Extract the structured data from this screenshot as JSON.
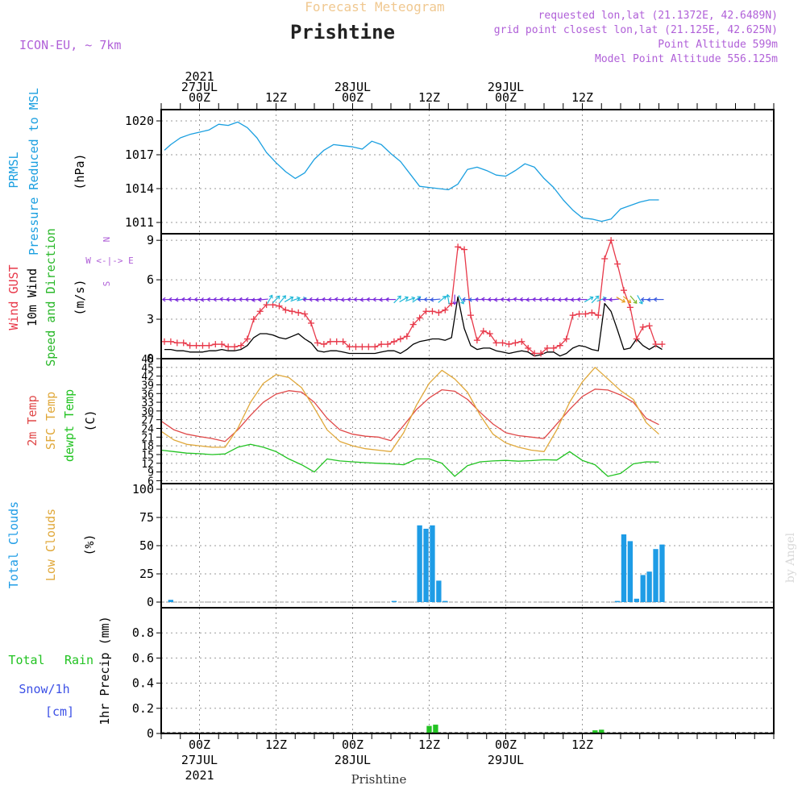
{
  "header": {
    "subtitle": "Forecast Meteogram",
    "location": "Prishtine",
    "model": "ICON-EU, ~ 7km",
    "requested": "requested lon,lat (21.1372E, 42.6489N)",
    "grid_point": "grid point closest lon,lat (21.125E, 42.625N)",
    "point_altitude": "Point Altitude 599m",
    "model_altitude": "Model Point Altitude 556.125m",
    "credit": "by Angel",
    "footer_location": "Prishtine"
  },
  "colors": {
    "pressure": "#1a9fe0",
    "gust": "#e8394a",
    "wind": "#000000",
    "direction": "#2ab82a",
    "temp2m": "#e04848",
    "sfc_temp": "#e0a83a",
    "dewpt": "#22c322",
    "clouds": "#1e9ce6",
    "low_clouds": "#e0a83a",
    "rain": "#22c322",
    "snow": "#3c50e6",
    "label_purple": "#b060d8",
    "subtitle_orange": "#f0c890"
  },
  "time_axis": {
    "hours_min": -6,
    "hours_max": 90,
    "ticks": [
      {
        "h": 0,
        "top": [
          "2021",
          "27JUL",
          "00Z"
        ],
        "bottom": [
          "00Z",
          "27JUL",
          "2021"
        ]
      },
      {
        "h": 12,
        "top": [
          "12Z"
        ],
        "bottom": [
          "12Z"
        ]
      },
      {
        "h": 24,
        "top": [
          "28JUL",
          "00Z"
        ],
        "bottom": [
          "00Z",
          "28JUL"
        ]
      },
      {
        "h": 36,
        "top": [
          "12Z"
        ],
        "bottom": [
          "12Z"
        ]
      },
      {
        "h": 48,
        "top": [
          "29JUL",
          "00Z"
        ],
        "bottom": [
          "00Z",
          "29JUL"
        ]
      },
      {
        "h": 60,
        "top": [
          "12Z"
        ],
        "bottom": [
          "12Z"
        ]
      }
    ]
  },
  "chart_data": [
    {
      "type": "line",
      "panel": "pressure",
      "labels": [
        "PRMSL",
        "Pressure Reduced to MSL",
        "(hPa)"
      ],
      "ylim": [
        1010,
        1021
      ],
      "yticks": [
        1011,
        1014,
        1017,
        1020
      ],
      "x": [
        -5.5,
        -4.5,
        -3,
        -1.5,
        0,
        1.5,
        3,
        4.5,
        6,
        7.5,
        9,
        10.5,
        12,
        13.5,
        15,
        16.5,
        18,
        19.5,
        21,
        22.5,
        24,
        25.5,
        27,
        28.5,
        30,
        31.5,
        33,
        34.5,
        36,
        37.5,
        39,
        40.5,
        42,
        43.5,
        45,
        46.5,
        48,
        49.5,
        51,
        52.5,
        54,
        55.5,
        57,
        58.5,
        60,
        61.5,
        63,
        64.5,
        66,
        67.5,
        69,
        70.5,
        72
      ],
      "values": [
        1017.4,
        1017.9,
        1018.5,
        1018.8,
        1019.0,
        1019.2,
        1019.7,
        1019.6,
        1019.9,
        1019.4,
        1018.5,
        1017.2,
        1016.3,
        1015.5,
        1014.9,
        1015.4,
        1016.6,
        1017.4,
        1017.9,
        1017.8,
        1017.7,
        1017.5,
        1018.2,
        1017.9,
        1017.1,
        1016.4,
        1015.3,
        1014.2,
        1014.1,
        1014.0,
        1013.9,
        1014.4,
        1015.7,
        1015.9,
        1015.6,
        1015.2,
        1015.1,
        1015.6,
        1016.2,
        1015.9,
        1014.9,
        1014.1,
        1013.0,
        1012.1,
        1011.4,
        1011.3,
        1011.1,
        1011.3,
        1012.2,
        1012.5,
        1012.8,
        1013.0,
        1013.0
      ]
    },
    {
      "type": "line",
      "panel": "wind",
      "labels": [
        "Wind GUST",
        "10m Wind",
        "Speed and Direction",
        "(m/s)"
      ],
      "compass": [
        "N",
        "W <-|-> E",
        "S"
      ],
      "ylim": [
        0,
        9.5
      ],
      "yticks": [
        0,
        3,
        6,
        9
      ],
      "x": [
        -5.5,
        -4.5,
        -3.5,
        -2.5,
        -1.5,
        -0.5,
        0.5,
        1.5,
        2.5,
        3.5,
        4.5,
        5.5,
        6.5,
        7.5,
        8.5,
        9.5,
        10.5,
        11.5,
        12.5,
        13.5,
        14.5,
        15.5,
        16.5,
        17.5,
        18.5,
        19.5,
        20.5,
        21.5,
        22.5,
        23.5,
        24.5,
        25.5,
        26.5,
        27.5,
        28.5,
        29.5,
        30.5,
        31.5,
        32.5,
        33.5,
        34.5,
        35.5,
        36.5,
        37.5,
        38.5,
        39.5,
        40.5,
        41.5,
        42.5,
        43.5,
        44.5,
        45.5,
        46.5,
        47.5,
        48.5,
        49.5,
        50.5,
        51.5,
        52.5,
        53.5,
        54.5,
        55.5,
        56.5,
        57.5,
        58.5,
        59.5,
        60.5,
        61.5,
        62.5,
        63.5,
        64.5,
        65.5,
        66.5,
        67.5,
        68.5,
        69.5,
        70.5,
        71.5,
        72.5
      ],
      "series": [
        {
          "name": "Wind GUST",
          "values": [
            1.3,
            1.3,
            1.2,
            1.2,
            1.0,
            1.0,
            1.0,
            1.0,
            1.1,
            1.1,
            0.9,
            0.9,
            1.0,
            1.5,
            3.0,
            3.6,
            4.1,
            4.1,
            4.0,
            3.7,
            3.6,
            3.5,
            3.4,
            2.7,
            1.2,
            1.1,
            1.3,
            1.3,
            1.3,
            0.9,
            0.9,
            0.9,
            0.9,
            0.9,
            1.1,
            1.1,
            1.3,
            1.5,
            1.7,
            2.6,
            3.1,
            3.6,
            3.6,
            3.5,
            3.7,
            4.2,
            8.5,
            8.3,
            3.3,
            1.4,
            2.1,
            1.9,
            1.2,
            1.2,
            1.1,
            1.2,
            1.3,
            0.8,
            0.4,
            0.4,
            0.8,
            0.8,
            1.0,
            1.5,
            3.3,
            3.4,
            3.4,
            3.5,
            3.3,
            7.6,
            9.0,
            7.2,
            5.2,
            3.9,
            1.5,
            2.4,
            2.5,
            1.1,
            1.1
          ]
        },
        {
          "name": "10m Wind",
          "values": [
            0.7,
            0.7,
            0.6,
            0.6,
            0.5,
            0.5,
            0.5,
            0.6,
            0.6,
            0.7,
            0.6,
            0.6,
            0.7,
            1.0,
            1.6,
            1.9,
            1.9,
            1.8,
            1.6,
            1.5,
            1.7,
            1.9,
            1.5,
            1.2,
            0.6,
            0.5,
            0.6,
            0.6,
            0.5,
            0.4,
            0.4,
            0.4,
            0.4,
            0.4,
            0.5,
            0.6,
            0.6,
            0.4,
            0.7,
            1.1,
            1.3,
            1.4,
            1.5,
            1.5,
            1.4,
            1.6,
            4.7,
            2.3,
            1.0,
            0.7,
            0.8,
            0.8,
            0.6,
            0.5,
            0.4,
            0.5,
            0.6,
            0.5,
            0.2,
            0.3,
            0.5,
            0.5,
            0.2,
            0.4,
            0.8,
            1.0,
            0.9,
            0.7,
            0.6,
            4.2,
            3.6,
            2.2,
            0.7,
            0.8,
            1.5,
            1.0,
            0.7,
            1.0,
            0.7
          ]
        }
      ]
    },
    {
      "type": "line",
      "panel": "temperature",
      "labels": [
        "2m Temp",
        "SFC Temp",
        "dewpt Temp",
        "(C)"
      ],
      "ylim": [
        5,
        48
      ],
      "yticks": [
        6,
        9,
        12,
        15,
        18,
        21,
        24,
        27,
        30,
        33,
        36,
        39,
        42,
        45,
        48
      ],
      "x": [
        -6,
        -4,
        -2,
        0,
        2,
        4,
        6,
        8,
        10,
        12,
        14,
        16,
        18,
        20,
        22,
        24,
        26,
        28,
        30,
        32,
        34,
        36,
        38,
        40,
        42,
        44,
        46,
        48,
        50,
        52,
        54,
        56,
        58,
        60,
        62,
        64,
        66,
        68,
        70,
        72
      ],
      "series": [
        {
          "name": "2m Temp",
          "values": [
            26.5,
            23.5,
            22.0,
            21.2,
            20.5,
            19.5,
            23.5,
            28.5,
            33.0,
            35.8,
            37.0,
            36.5,
            33.0,
            27.5,
            23.5,
            22.0,
            21.3,
            21.0,
            19.8,
            25.0,
            30.5,
            34.5,
            37.3,
            36.8,
            34.0,
            29.5,
            25.5,
            22.5,
            21.5,
            21.0,
            20.5,
            25.5,
            30.5,
            35.0,
            37.5,
            37.2,
            35.5,
            33.0,
            27.5,
            25.3
          ]
        },
        {
          "name": "SFC Temp",
          "values": [
            23.0,
            20.0,
            18.5,
            18.0,
            17.5,
            17.5,
            24.0,
            33.0,
            39.5,
            42.5,
            41.5,
            38.0,
            31.0,
            23.5,
            19.5,
            18.0,
            17.0,
            16.5,
            16.0,
            22.5,
            32.0,
            39.5,
            44.0,
            41.0,
            36.5,
            28.5,
            22.0,
            19.0,
            17.5,
            16.5,
            16.0,
            23.5,
            33.0,
            40.0,
            45.0,
            41.0,
            37.0,
            34.0,
            26.0,
            22.0
          ]
        },
        {
          "name": "dewpt Temp",
          "values": [
            16.5,
            16.0,
            15.5,
            15.3,
            15.0,
            15.2,
            17.5,
            18.5,
            17.5,
            16.0,
            13.5,
            11.5,
            9.0,
            13.5,
            12.8,
            12.5,
            12.2,
            12.0,
            11.8,
            11.5,
            13.5,
            13.5,
            12.0,
            7.5,
            11.2,
            12.5,
            12.8,
            13.0,
            12.7,
            12.9,
            13.2,
            13.1,
            16.0,
            13.0,
            11.5,
            7.5,
            8.5,
            11.8,
            12.5,
            12.4
          ]
        }
      ]
    },
    {
      "type": "bar",
      "panel": "clouds",
      "labels": [
        "Total Clouds",
        "Low Clouds",
        "(%)"
      ],
      "ylim": [
        -5,
        105
      ],
      "yticks": [
        0,
        25,
        50,
        75,
        100
      ],
      "x": [
        -4.5,
        30.5,
        34.5,
        35.5,
        36.5,
        37.5,
        38.5,
        65.5,
        66.5,
        67.5,
        68.5,
        69.5,
        70.5,
        71.5,
        72.5
      ],
      "values": [
        2,
        1,
        68,
        65,
        68,
        19,
        1,
        1,
        60,
        54,
        3,
        24,
        27,
        47,
        51
      ]
    },
    {
      "type": "bar",
      "panel": "precipitation",
      "labels": [
        "Total",
        "Rain",
        "Snow/1h",
        "[cm]",
        "1hr Precip (mm)"
      ],
      "ylim": [
        0,
        1.0
      ],
      "yticks": [
        0,
        0.2,
        0.4,
        0.6,
        0.8
      ],
      "x": [
        36,
        37,
        62,
        63
      ],
      "values": [
        0.06,
        0.07,
        0.025,
        0.03
      ]
    }
  ],
  "wind_arrows": {
    "comment": "wind direction arrows drawn along the gust line; angle in degrees (0 = toward east, 90 = toward south)",
    "x": [
      -5,
      -4,
      -3,
      -2,
      -1,
      0,
      1,
      2,
      3,
      4,
      5,
      6,
      7,
      8,
      9,
      10,
      11,
      12,
      13,
      14,
      15,
      16,
      17,
      18,
      19,
      20,
      21,
      22,
      23,
      24,
      25,
      26,
      27,
      28,
      29,
      30,
      31,
      32,
      33,
      34,
      35,
      36,
      37,
      38,
      39,
      40,
      41,
      42,
      43,
      44,
      45,
      46,
      47,
      48,
      49,
      50,
      51,
      52,
      53,
      54,
      55,
      56,
      57,
      58,
      59,
      60,
      61,
      62,
      63,
      64,
      65,
      66,
      67,
      68,
      69,
      70,
      71,
      72
    ],
    "angles": [
      180,
      180,
      175,
      180,
      185,
      180,
      175,
      180,
      180,
      185,
      180,
      175,
      180,
      180,
      170,
      175,
      -60,
      -45,
      -50,
      -30,
      -20,
      -15,
      180,
      180,
      175,
      180,
      180,
      185,
      175,
      180,
      180,
      175,
      180,
      180,
      175,
      180,
      -45,
      -30,
      -20,
      -35,
      180,
      180,
      175,
      -40,
      -100,
      90,
      60,
      180,
      175,
      180,
      185,
      180,
      175,
      180,
      175,
      185,
      180,
      175,
      180,
      180,
      185,
      180,
      175,
      180,
      175,
      180,
      -30,
      -45,
      -20,
      180,
      175,
      30,
      40,
      50,
      60,
      180,
      175,
      180
    ],
    "colors": [
      "#7a2adb",
      "#7a2adb",
      "#7a2adb",
      "#7a2adb",
      "#7a2adb",
      "#7a2adb",
      "#7a2adb",
      "#7a2adb",
      "#7a2adb",
      "#7a2adb",
      "#7a2adb",
      "#7a2adb",
      "#7a2adb",
      "#7a2adb",
      "#7a2adb",
      "#7a2adb",
      "#20b8d8",
      "#20b8d8",
      "#20b8d8",
      "#20b8d8",
      "#20b8d8",
      "#20b8d8",
      "#7a2adb",
      "#7a2adb",
      "#7a2adb",
      "#7a2adb",
      "#7a2adb",
      "#7a2adb",
      "#7a2adb",
      "#7a2adb",
      "#7a2adb",
      "#7a2adb",
      "#7a2adb",
      "#7a2adb",
      "#7a2adb",
      "#7a2adb",
      "#20b8d8",
      "#20b8d8",
      "#20b8d8",
      "#20b8d8",
      "#3a5ae0",
      "#3a5ae0",
      "#3a5ae0",
      "#20b8d8",
      "#20b8d8",
      "#7a2adb",
      "#20b8d8",
      "#3a5ae0",
      "#3a5ae0",
      "#7a2adb",
      "#7a2adb",
      "#7a2adb",
      "#7a2adb",
      "#7a2adb",
      "#7a2adb",
      "#7a2adb",
      "#7a2adb",
      "#7a2adb",
      "#7a2adb",
      "#7a2adb",
      "#7a2adb",
      "#7a2adb",
      "#7a2adb",
      "#7a2adb",
      "#7a2adb",
      "#7a2adb",
      "#20b8d8",
      "#20b8d8",
      "#20b8d8",
      "#7a2adb",
      "#7a2adb",
      "#e8a020",
      "#e8a020",
      "#7ab82a",
      "#20b8d8",
      "#3a5ae0",
      "#3a5ae0",
      "#3a5ae0"
    ]
  }
}
